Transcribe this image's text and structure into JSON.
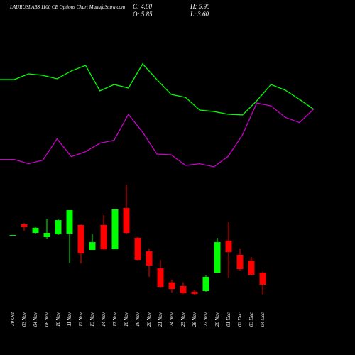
{
  "chart_data": {
    "type": "candlestick",
    "title": "LAURUSLABS 1100 CE Options  Chart MunafaSutra.com",
    "ohlc_text": {
      "close": "C: 4.60",
      "high": "H: 5.95",
      "open": "O: 5.85",
      "low": "L: 3.60"
    },
    "categories": [
      "30 Oct",
      "03 Nov",
      "04 Nov",
      "06 Nov",
      "10 Nov",
      "11 Nov",
      "12 Nov",
      "13 Nov",
      "14 Nov",
      "17 Nov",
      "18 Nov",
      "19 Nov",
      "20 Nov",
      "21 Nov",
      "24 Nov",
      "25 Nov",
      "26 Nov",
      "27 Nov",
      "28 Nov",
      "01 Dec",
      "02 Dec",
      "03 Dec",
      "04 Dec"
    ],
    "open": [
      9.74,
      10.85,
      9.97,
      9.53,
      9.82,
      9.9,
      10.78,
      8.21,
      10.78,
      8.28,
      12.54,
      9.46,
      8.06,
      6.29,
      4.85,
      4.46,
      3.87,
      3.94,
      5.85,
      9.16,
      7.69,
      7.1,
      5.85
    ],
    "high": [
      9.74,
      11.0,
      10.56,
      11.44,
      11.37,
      12.32,
      10.85,
      9.82,
      11.81,
      12.4,
      14.97,
      9.53,
      8.35,
      7.18,
      5.12,
      4.85,
      4.09,
      5.56,
      9.46,
      11.07,
      8.35,
      7.47,
      5.95
    ],
    "low": [
      9.74,
      10.18,
      9.9,
      9.38,
      9.75,
      6.85,
      6.78,
      8.21,
      8.21,
      8.28,
      9.82,
      7.1,
      5.41,
      4.31,
      3.79,
      3.65,
      3.5,
      3.87,
      5.78,
      5.34,
      6.07,
      5.56,
      3.6
    ],
    "close": [
      9.74,
      10.56,
      10.49,
      9.97,
      11.29,
      12.32,
      7.84,
      9.01,
      8.28,
      12.4,
      9.97,
      7.18,
      6.59,
      4.38,
      4.16,
      3.72,
      3.65,
      5.41,
      9.01,
      7.99,
      6.22,
      5.63,
      4.6
    ],
    "up_color": "#00ff00",
    "down_color": "#ff0000",
    "lines": [
      {
        "color": "#00ff00",
        "values": [
          25.85,
          25.85,
          26.44,
          26.29,
          25.93,
          26.74,
          27.32,
          24.68,
          25.34,
          24.97,
          27.47,
          25.85,
          24.31,
          24.01,
          22.69,
          22.54,
          22.25,
          22.18,
          23.65,
          25.34,
          24.75,
          23.79,
          22.76
        ]
      },
      {
        "color": "#cc00cc",
        "values": [
          17.57,
          17.57,
          17.13,
          17.5,
          19.71,
          17.87,
          18.38,
          19.26,
          19.56,
          22.25,
          20.4,
          18.13,
          18.06,
          16.96,
          17.13,
          16.81,
          17.91,
          20.12,
          23.42,
          23.12,
          21.93,
          21.4,
          22.81
        ]
      }
    ],
    "ylim": [
      0,
      34
    ]
  }
}
